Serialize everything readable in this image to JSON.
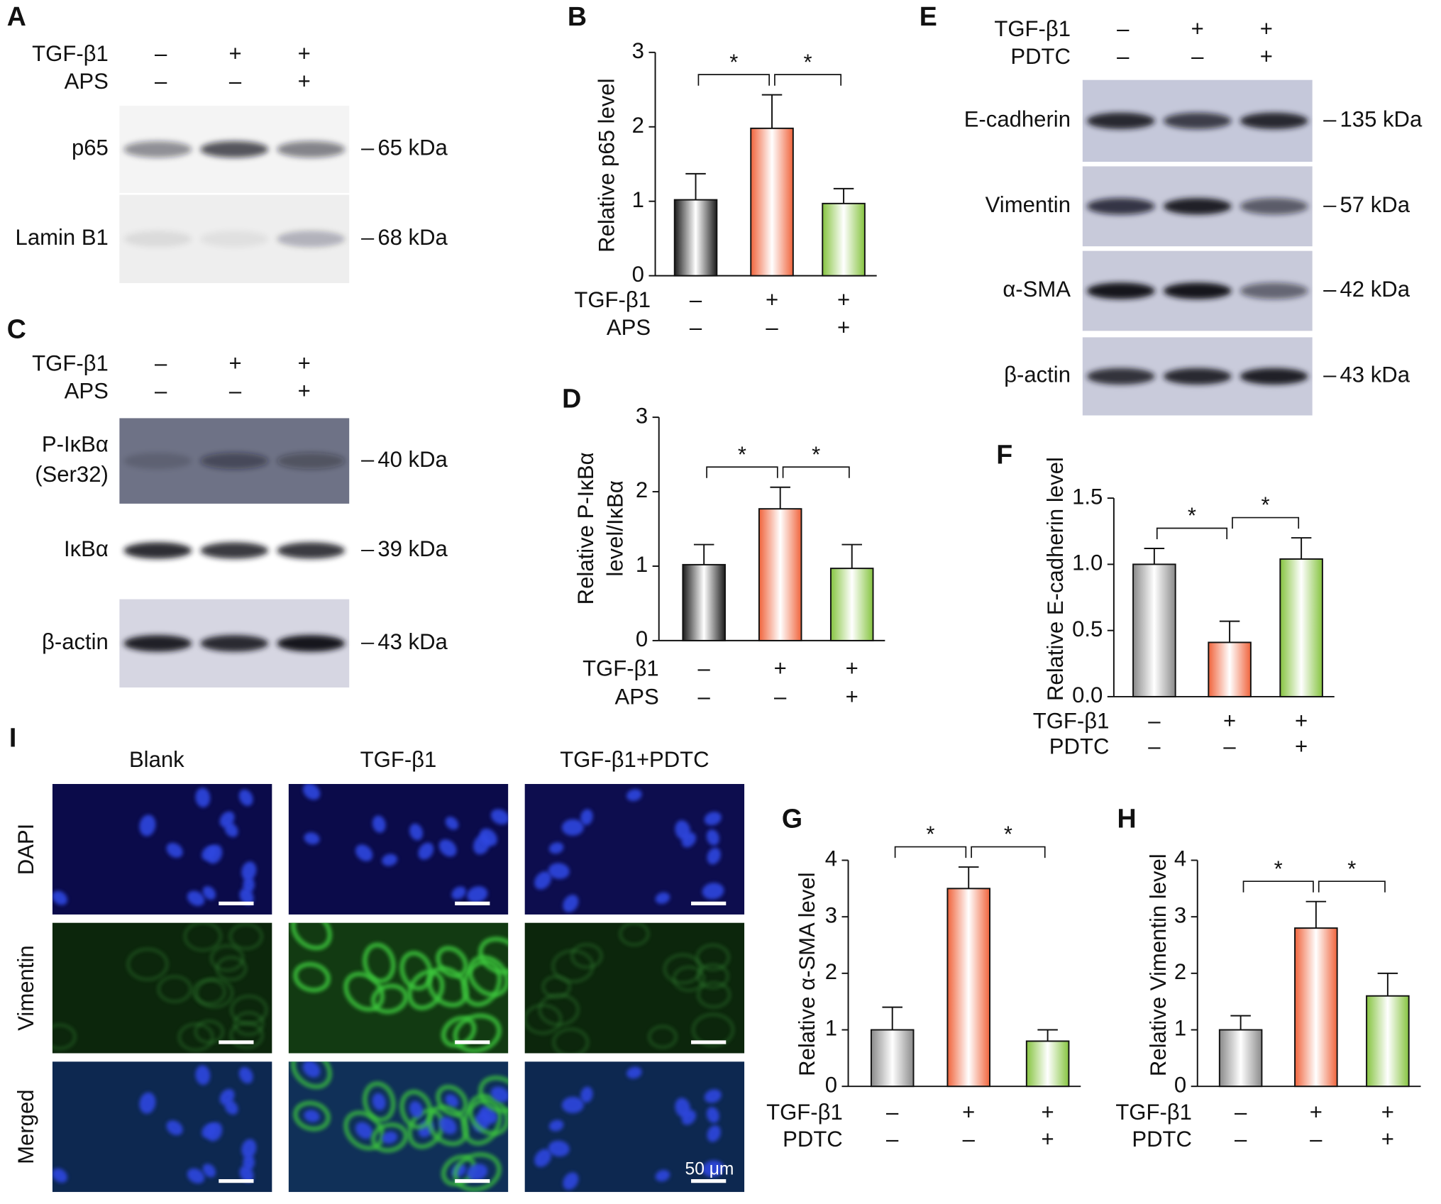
{
  "chart_data": [
    {
      "type": "bar",
      "panel": "B",
      "ylabel": [
        "Relative p65 level"
      ],
      "conditions": [
        {
          "name": "TGF-β1",
          "marks": [
            "–",
            "+",
            "+"
          ]
        },
        {
          "name": "APS",
          "marks": [
            "–",
            "–",
            "+"
          ]
        }
      ],
      "values": [
        1.02,
        1.98,
        0.97
      ],
      "errors": [
        0.35,
        0.45,
        0.2
      ],
      "colors": [
        "#1c1c1c",
        "#f0643c",
        "#86c440"
      ],
      "ylim": [
        0,
        3
      ],
      "yticks": [
        0,
        1,
        2,
        3
      ],
      "significance": [
        "*",
        "*"
      ]
    },
    {
      "type": "bar",
      "panel": "D",
      "ylabel": [
        "Relative P-IκBα",
        "level/IκBα"
      ],
      "conditions": [
        {
          "name": "TGF-β1",
          "marks": [
            "–",
            "+",
            "+"
          ]
        },
        {
          "name": "APS",
          "marks": [
            "–",
            "–",
            "+"
          ]
        }
      ],
      "values": [
        1.02,
        1.77,
        0.97
      ],
      "errors": [
        0.27,
        0.29,
        0.32
      ],
      "colors": [
        "#1c1c1c",
        "#f0643c",
        "#86c440"
      ],
      "ylim": [
        0,
        3
      ],
      "yticks": [
        0,
        1,
        2,
        3
      ],
      "significance": [
        "*",
        "*"
      ]
    },
    {
      "type": "bar",
      "panel": "F",
      "ylabel": [
        "Relative E-cadherin level"
      ],
      "conditions": [
        {
          "name": "TGF-β1",
          "marks": [
            "–",
            "+",
            "+"
          ]
        },
        {
          "name": "PDTC",
          "marks": [
            "–",
            "–",
            "+"
          ]
        }
      ],
      "values": [
        1.0,
        0.41,
        1.04
      ],
      "errors": [
        0.12,
        0.16,
        0.16
      ],
      "colors": [
        "#8a8a8a",
        "#f0643c",
        "#86c440"
      ],
      "ylim": [
        0,
        1.5
      ],
      "yticks": [
        {
          "value": 0,
          "label": "0.0"
        },
        0.5,
        {
          "value": 1,
          "label": "1.0"
        },
        1.5
      ],
      "significance": [
        "*",
        "*"
      ]
    },
    {
      "type": "bar",
      "panel": "G",
      "ylabel": [
        "Relative α-SMA level"
      ],
      "conditions": [
        {
          "name": "TGF-β1",
          "marks": [
            "–",
            "+",
            "+"
          ]
        },
        {
          "name": "PDTC",
          "marks": [
            "–",
            "–",
            "+"
          ]
        }
      ],
      "values": [
        1.0,
        3.5,
        0.8
      ],
      "errors": [
        0.4,
        0.38,
        0.2
      ],
      "colors": [
        "#8a8a8a",
        "#f0643c",
        "#86c440"
      ],
      "ylim": [
        0,
        4
      ],
      "yticks": [
        0,
        1,
        2,
        3,
        4
      ],
      "significance": [
        "*",
        "*"
      ]
    },
    {
      "type": "bar",
      "panel": "H",
      "ylabel": [
        "Relative Vimentin level"
      ],
      "conditions": [
        {
          "name": "TGF-β1",
          "marks": [
            "–",
            "+",
            "+"
          ]
        },
        {
          "name": "PDTC",
          "marks": [
            "–",
            "–",
            "+"
          ]
        }
      ],
      "values": [
        1.0,
        2.8,
        1.6
      ],
      "errors": [
        0.25,
        0.47,
        0.4
      ],
      "colors": [
        "#8a8a8a",
        "#f0643c",
        "#86c440"
      ],
      "ylim": [
        0,
        4
      ],
      "yticks": [
        0,
        1,
        2,
        3,
        4
      ],
      "significance": [
        "*",
        "*"
      ]
    }
  ],
  "blots": [
    {
      "panel": "A",
      "conditions": [
        {
          "name": "TGF-β1",
          "marks": [
            "–",
            "+",
            "+"
          ]
        },
        {
          "name": "APS",
          "marks": [
            "–",
            "–",
            "+"
          ]
        }
      ],
      "rows": [
        {
          "label": [
            "p65"
          ],
          "marker": "65 kDa"
        },
        {
          "label": [
            "Lamin B1"
          ],
          "marker": "68 kDa"
        }
      ]
    },
    {
      "panel": "C",
      "conditions": [
        {
          "name": "TGF-β1",
          "marks": [
            "–",
            "+",
            "+"
          ]
        },
        {
          "name": "APS",
          "marks": [
            "–",
            "–",
            "+"
          ]
        }
      ],
      "rows": [
        {
          "label": [
            "P-IκBα",
            "(Ser32)"
          ],
          "marker": "40 kDa"
        },
        {
          "label": [
            "IκBα"
          ],
          "marker": "39 kDa"
        },
        {
          "label": [
            "β-actin"
          ],
          "marker": "43 kDa"
        }
      ]
    },
    {
      "panel": "E",
      "conditions": [
        {
          "name": "TGF-β1",
          "marks": [
            "–",
            "+",
            "+"
          ]
        },
        {
          "name": "PDTC",
          "marks": [
            "–",
            "–",
            "+"
          ]
        }
      ],
      "rows": [
        {
          "label": [
            "E-cadherin"
          ],
          "marker": "135 kDa"
        },
        {
          "label": [
            "Vimentin"
          ],
          "marker": "57 kDa"
        },
        {
          "label": [
            "α-SMA"
          ],
          "marker": "42 kDa"
        },
        {
          "label": [
            "β-actin"
          ],
          "marker": "43 kDa"
        }
      ]
    }
  ],
  "immunofluorescence": {
    "panel": "I",
    "columns": [
      "Blank",
      "TGF-β1",
      "TGF-β1+PDTC"
    ],
    "rows": [
      "DAPI",
      "Vimentin",
      "Merged"
    ],
    "scale_bar": "50 μm"
  }
}
